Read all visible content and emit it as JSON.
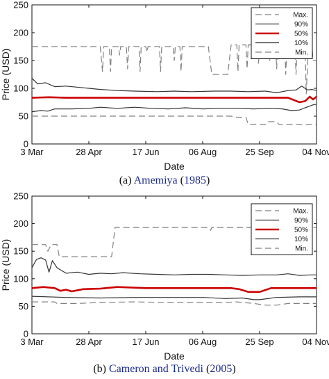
{
  "captions": [
    {
      "prefix": "(a) ",
      "cite_name": "Amemiya",
      "open": " (",
      "cite_year": "1985",
      "close": ")"
    },
    {
      "prefix": "(b) ",
      "cite_name": "Cameron and Trivedi",
      "open": " (",
      "cite_year": "2005",
      "close": ")"
    }
  ],
  "chart_data": [
    {
      "type": "line",
      "xlabel": "Date",
      "ylabel": "Price (USD)",
      "xlim": [
        0,
        250
      ],
      "ylim": [
        0,
        250
      ],
      "x_ticks": [
        "3 Mar",
        "28 Apr",
        "17 Jun",
        "06 Aug",
        "25 Sep",
        "04 Nov"
      ],
      "y_ticks": [
        0,
        50,
        100,
        150,
        200,
        250
      ],
      "legend_position": "top-right",
      "series": [
        {
          "name": "Max.",
          "style": "dashed",
          "color": "#808080",
          "points": [
            [
              0,
              175
            ],
            [
              60,
              175
            ],
            [
              62,
              130
            ],
            [
              63,
              175
            ],
            [
              68,
              175
            ],
            [
              69,
              130
            ],
            [
              70,
              175
            ],
            [
              76,
              175
            ],
            [
              77,
              160
            ],
            [
              78,
              175
            ],
            [
              83,
              175
            ],
            [
              84,
              135
            ],
            [
              85,
              175
            ],
            [
              94,
              175
            ],
            [
              95,
              130
            ],
            [
              96,
              175
            ],
            [
              100,
              175
            ],
            [
              101,
              165
            ],
            [
              102,
              175
            ],
            [
              112,
              175
            ],
            [
              113,
              130
            ],
            [
              114,
              175
            ],
            [
              124,
              175
            ],
            [
              125,
              150
            ],
            [
              126,
              175
            ],
            [
              130,
              175
            ],
            [
              131,
              130
            ],
            [
              132,
              175
            ],
            [
              155,
              175
            ],
            [
              158,
              125
            ],
            [
              172,
              125
            ],
            [
              175,
              178
            ],
            [
              180,
              178
            ],
            [
              181,
              130
            ],
            [
              182,
              178
            ],
            [
              188,
              178
            ],
            [
              189,
              135
            ],
            [
              190,
              178
            ],
            [
              198,
              178
            ],
            [
              199,
              145
            ],
            [
              200,
              178
            ],
            [
              208,
              178
            ],
            [
              209,
              150
            ],
            [
              210,
              178
            ],
            [
              214,
              178
            ],
            [
              215,
              135
            ],
            [
              216,
              178
            ],
            [
              222,
              178
            ],
            [
              223,
              125
            ],
            [
              224,
              178
            ],
            [
              231,
              178
            ],
            [
              232,
              125
            ],
            [
              233,
              178
            ],
            [
              240,
              178
            ],
            [
              241,
              90
            ],
            [
              243,
              178
            ],
            [
              246,
              178
            ],
            [
              247,
              150
            ],
            [
              250,
              150
            ]
          ]
        },
        {
          "name": "90%",
          "style": "solid",
          "color": "#333333",
          "points": [
            [
              0,
              118
            ],
            [
              5,
              108
            ],
            [
              12,
              110
            ],
            [
              20,
              103
            ],
            [
              30,
              104
            ],
            [
              45,
              101
            ],
            [
              60,
              98
            ],
            [
              75,
              96
            ],
            [
              90,
              95
            ],
            [
              110,
              94
            ],
            [
              125,
              95
            ],
            [
              140,
              94
            ],
            [
              160,
              95
            ],
            [
              175,
              95
            ],
            [
              190,
              94
            ],
            [
              205,
              95
            ],
            [
              215,
              92
            ],
            [
              225,
              96
            ],
            [
              232,
              97
            ],
            [
              237,
              104
            ],
            [
              242,
              97
            ],
            [
              246,
              98
            ],
            [
              250,
              96
            ]
          ]
        },
        {
          "name": "50%",
          "style": "solid",
          "color": "#cc0000",
          "points": [
            [
              0,
              83
            ],
            [
              15,
              84
            ],
            [
              30,
              83
            ],
            [
              60,
              83
            ],
            [
              100,
              83
            ],
            [
              150,
              83
            ],
            [
              200,
              83
            ],
            [
              225,
              83
            ],
            [
              230,
              79
            ],
            [
              235,
              75
            ],
            [
              240,
              77
            ],
            [
              244,
              85
            ],
            [
              247,
              80
            ],
            [
              250,
              85
            ]
          ]
        },
        {
          "name": "10%",
          "style": "solid",
          "color": "#333333",
          "points": [
            [
              0,
              58
            ],
            [
              8,
              60
            ],
            [
              14,
              59
            ],
            [
              20,
              63
            ],
            [
              35,
              63
            ],
            [
              50,
              64
            ],
            [
              60,
              66
            ],
            [
              75,
              64
            ],
            [
              90,
              66
            ],
            [
              105,
              64
            ],
            [
              120,
              63
            ],
            [
              135,
              65
            ],
            [
              150,
              63
            ],
            [
              165,
              64
            ],
            [
              180,
              64
            ],
            [
              195,
              63
            ],
            [
              210,
              64
            ],
            [
              220,
              63
            ],
            [
              228,
              60
            ],
            [
              235,
              61
            ],
            [
              240,
              65
            ],
            [
              244,
              68
            ],
            [
              248,
              71
            ],
            [
              250,
              71
            ]
          ]
        },
        {
          "name": "Min.",
          "style": "dashed",
          "color": "#808080",
          "points": [
            [
              0,
              50
            ],
            [
              60,
              50
            ],
            [
              100,
              50
            ],
            [
              140,
              50
            ],
            [
              175,
              50
            ],
            [
              180,
              48
            ],
            [
              188,
              48
            ],
            [
              190,
              35
            ],
            [
              205,
              35
            ],
            [
              207,
              40
            ],
            [
              215,
              40
            ],
            [
              217,
              35
            ],
            [
              250,
              35
            ]
          ]
        }
      ]
    },
    {
      "type": "line",
      "xlabel": "Date",
      "ylabel": "Price (USD)",
      "xlim": [
        0,
        250
      ],
      "ylim": [
        0,
        250
      ],
      "x_ticks": [
        "3 Mar",
        "28 Apr",
        "17 Jun",
        "06 Aug",
        "25 Sep",
        "04 Nov"
      ],
      "y_ticks": [
        0,
        50,
        100,
        150,
        200,
        250
      ],
      "legend_position": "top-right",
      "series": [
        {
          "name": "Max.",
          "style": "dashed",
          "color": "#808080",
          "points": [
            [
              0,
              162
            ],
            [
              12,
              162
            ],
            [
              14,
              150
            ],
            [
              17,
              162
            ],
            [
              22,
              162
            ],
            [
              24,
              140
            ],
            [
              70,
              140
            ],
            [
              73,
              193
            ],
            [
              155,
              193
            ],
            [
              157,
              188
            ],
            [
              158,
              193
            ],
            [
              213,
              193
            ],
            [
              215,
              185
            ],
            [
              217,
              193
            ],
            [
              225,
              193
            ],
            [
              227,
              185
            ],
            [
              229,
              193
            ],
            [
              250,
              193
            ]
          ]
        },
        {
          "name": "90%",
          "style": "solid",
          "color": "#333333",
          "points": [
            [
              0,
              120
            ],
            [
              4,
              135
            ],
            [
              8,
              138
            ],
            [
              12,
              134
            ],
            [
              15,
              112
            ],
            [
              18,
              133
            ],
            [
              22,
              120
            ],
            [
              30,
              110
            ],
            [
              40,
              112
            ],
            [
              50,
              108
            ],
            [
              60,
              110
            ],
            [
              70,
              109
            ],
            [
              80,
              111
            ],
            [
              95,
              109
            ],
            [
              110,
              108
            ],
            [
              125,
              107
            ],
            [
              140,
              108
            ],
            [
              155,
              108
            ],
            [
              170,
              107
            ],
            [
              185,
              106
            ],
            [
              200,
              107
            ],
            [
              215,
              107
            ],
            [
              225,
              109
            ],
            [
              235,
              106
            ],
            [
              245,
              107
            ],
            [
              250,
              107
            ]
          ]
        },
        {
          "name": "50%",
          "style": "solid",
          "color": "#cc0000",
          "points": [
            [
              0,
              83
            ],
            [
              10,
              85
            ],
            [
              20,
              83
            ],
            [
              25,
              78
            ],
            [
              30,
              80
            ],
            [
              35,
              77
            ],
            [
              45,
              81
            ],
            [
              60,
              82
            ],
            [
              75,
              85
            ],
            [
              100,
              83
            ],
            [
              140,
              83
            ],
            [
              175,
              83
            ],
            [
              182,
              81
            ],
            [
              190,
              76
            ],
            [
              200,
              76
            ],
            [
              210,
              83
            ],
            [
              250,
              83
            ]
          ]
        },
        {
          "name": "10%",
          "style": "solid",
          "color": "#333333",
          "points": [
            [
              0,
              68
            ],
            [
              30,
              66
            ],
            [
              60,
              65
            ],
            [
              90,
              66
            ],
            [
              120,
              66
            ],
            [
              150,
              66
            ],
            [
              170,
              64
            ],
            [
              185,
              65
            ],
            [
              195,
              62
            ],
            [
              200,
              62
            ],
            [
              215,
              66
            ],
            [
              235,
              67
            ],
            [
              250,
              67
            ]
          ]
        },
        {
          "name": "Min.",
          "style": "dashed",
          "color": "#808080",
          "points": [
            [
              0,
              58
            ],
            [
              20,
              58
            ],
            [
              22,
              55
            ],
            [
              40,
              55
            ],
            [
              60,
              57
            ],
            [
              90,
              58
            ],
            [
              120,
              57
            ],
            [
              150,
              57
            ],
            [
              170,
              57
            ],
            [
              180,
              58
            ],
            [
              195,
              55
            ],
            [
              205,
              52
            ],
            [
              215,
              52
            ],
            [
              225,
              55
            ],
            [
              250,
              55
            ]
          ]
        }
      ]
    }
  ]
}
